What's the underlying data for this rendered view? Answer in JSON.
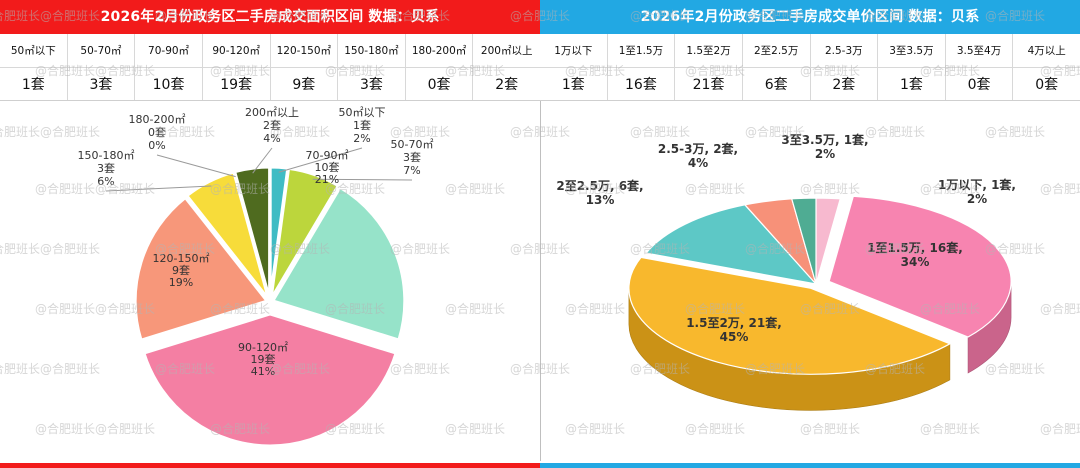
{
  "left": {
    "title": "2026年2月份政务区二手房成交面积区间 数据：贝系",
    "columns": [
      "50㎡以下",
      "50-70㎡",
      "70-90㎡",
      "90-120㎡",
      "120-150㎡",
      "150-180㎡",
      "180-200㎡",
      "200㎡以上"
    ],
    "values": [
      "1套",
      "3套",
      "10套",
      "19套",
      "9套",
      "3套",
      "0套",
      "2套"
    ],
    "colors": [
      "#3fbcc4",
      "#bcd63c",
      "#96e3c9",
      "#f47fa3",
      "#f7977a",
      "#f7dc3a",
      "#f2c0b2",
      "#4f6b1f"
    ]
  },
  "right": {
    "title": "2026年2月份政务区二手房成交单价区间 数据：贝系",
    "columns": [
      "1万以下",
      "1至1.5万",
      "1.5至2万",
      "2至2.5万",
      "2.5-3万",
      "3至3.5万",
      "3.5至4万",
      "4万以上"
    ],
    "values": [
      "1套",
      "16套",
      "21套",
      "6套",
      "2套",
      "1套",
      "0套",
      "0套"
    ],
    "colors": [
      "#f6b3cb",
      "#f67aa9",
      "#f7b21b",
      "#4fc3c1",
      "#f6886e",
      "#40a58a",
      "#f7b21b",
      "#f7b21b"
    ]
  },
  "watermark": "@合肥班长",
  "chart_data": [
    {
      "type": "pie",
      "categories": [
        "50㎡以下",
        "50-70㎡",
        "70-90㎡",
        "90-120㎡",
        "120-150㎡",
        "150-180㎡",
        "180-200㎡",
        "200㎡以上"
      ],
      "values": [
        1,
        3,
        10,
        19,
        9,
        3,
        0,
        2
      ],
      "percent_labels": [
        "2%",
        "7%",
        "21%",
        "41%",
        "19%",
        "6%",
        "0%",
        "4%"
      ],
      "count_labels": [
        "1套",
        "3套",
        "10套",
        "19套",
        "9套",
        "3套",
        "0套",
        "2套"
      ]
    },
    {
      "type": "pie",
      "variant": "3d",
      "categories": [
        "1万以下",
        "1至1.5万",
        "1.5至2万",
        "2至2.5万",
        "2.5-3万",
        "3至3.5万"
      ],
      "values": [
        1,
        16,
        21,
        6,
        2,
        1
      ],
      "labels": [
        "1万以下, 1套,",
        "1至1.5万, 16套,",
        "1.5至2万, 21套,",
        "2至2.5万, 6套,",
        "2.5-3万, 2套,",
        "3至3.5万, 1套,"
      ],
      "percent_labels": [
        "2%",
        "34%",
        "45%",
        "13%",
        "4%",
        "2%"
      ]
    }
  ]
}
